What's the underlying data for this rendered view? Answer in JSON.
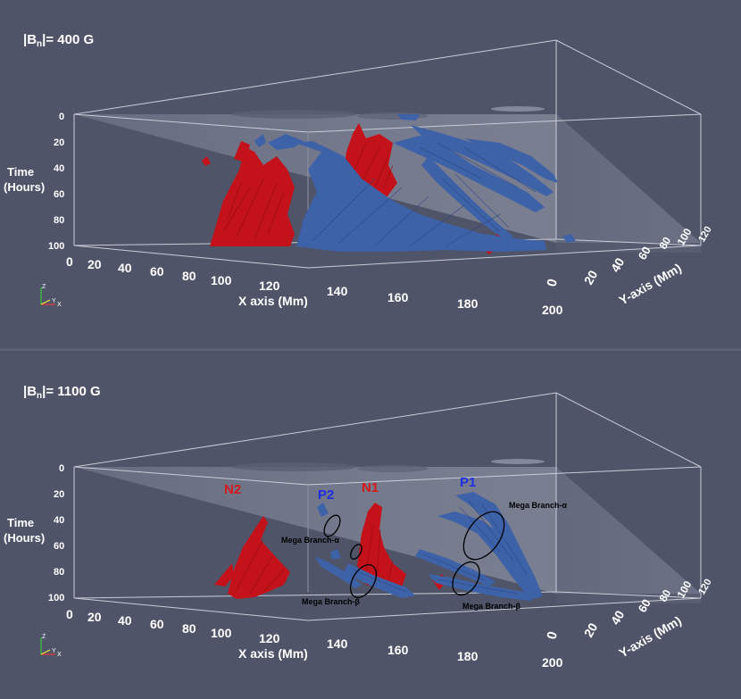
{
  "colors": {
    "background": "#4f5468",
    "negative_flux": "#c4121a",
    "positive_flux": "#3e62a8",
    "polarity_red": "#d41a1a",
    "polarity_blue": "#1e2ee0"
  },
  "panels": [
    {
      "title_prefix": "|B",
      "title_sub": "n",
      "title_suffix": "|= 400 G",
      "time_label_1": "Time",
      "time_label_2": "(Hours)",
      "x_axis_label": "X axis (Mm)",
      "y_axis_label": "Y-axis (Mm)",
      "time_ticks": [
        "0",
        "20",
        "40",
        "60",
        "80",
        "100"
      ],
      "x_ticks": [
        "0",
        "20",
        "40",
        "60",
        "80",
        "100",
        "120",
        "140",
        "160",
        "180",
        "200"
      ],
      "y_ticks": [
        "0",
        "20",
        "40",
        "60",
        "80",
        "100",
        "120"
      ],
      "triad": {
        "z": "Z",
        "y": "Y",
        "x": "X"
      }
    },
    {
      "title_prefix": "|B",
      "title_sub": "n",
      "title_suffix": "|= 1100 G",
      "time_label_1": "Time",
      "time_label_2": "(Hours)",
      "x_axis_label": "X axis (Mm)",
      "y_axis_label": "Y-axis (Mm)",
      "time_ticks": [
        "0",
        "20",
        "40",
        "60",
        "80",
        "100"
      ],
      "x_ticks": [
        "0",
        "20",
        "40",
        "60",
        "80",
        "100",
        "120",
        "140",
        "160",
        "180",
        "200"
      ],
      "y_ticks": [
        "0",
        "20",
        "40",
        "60",
        "80",
        "100",
        "120"
      ],
      "triad": {
        "z": "Z",
        "y": "Y",
        "x": "X"
      },
      "polarity_labels": {
        "n2": "N2",
        "p2": "P2",
        "n1": "N1",
        "p1": "P1"
      },
      "annotations": {
        "alpha_left": "Mega Branch-α",
        "alpha_right": "Mega Branch-α",
        "beta_left": "Mega Branch-β",
        "beta_right": "Mega Branch-β"
      }
    }
  ]
}
